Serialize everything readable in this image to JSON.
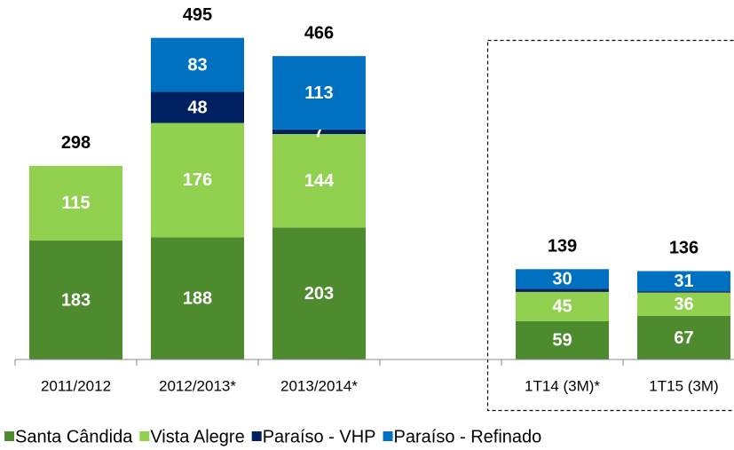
{
  "chart_data": {
    "type": "stacked_bar",
    "categories": [
      "2011/2012",
      "2012/2013*",
      "2013/2014*",
      null,
      "1T14 (3M)*",
      "1T15 (3M)"
    ],
    "series": [
      {
        "name": "Santa Cândida",
        "color": "#4e8a2e",
        "values": [
          183,
          188,
          203,
          null,
          59,
          67
        ]
      },
      {
        "name": "Vista Alegre",
        "color": "#92d050",
        "values": [
          115,
          176,
          144,
          null,
          45,
          36
        ]
      },
      {
        "name": "Paraíso - VHP",
        "color": "#002060",
        "values": [
          null,
          48,
          7,
          null,
          5,
          2
        ],
        "value_labels": [
          null,
          "48",
          "7",
          null,
          null,
          null
        ]
      },
      {
        "name": "Paraíso - Refinado",
        "color": "#0070c0",
        "values": [
          null,
          83,
          113,
          null,
          30,
          31
        ]
      }
    ],
    "totals": [
      298,
      495,
      466,
      null,
      139,
      136
    ],
    "ylim": [
      0,
      550
    ]
  }
}
